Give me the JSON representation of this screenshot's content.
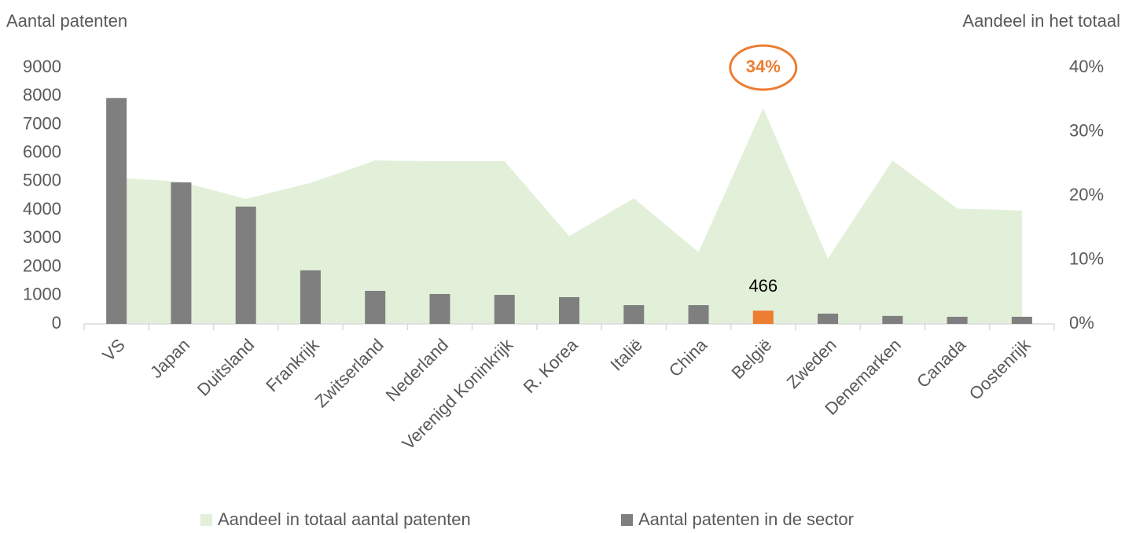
{
  "chart_data": {
    "type": "bar-area",
    "y_label": "Aantal patenten",
    "y2_label": "Aandeel in het totaal",
    "categories": [
      "VS",
      "Japan",
      "Duitsland",
      "Frankrijk",
      "Zwitserland",
      "Nederland",
      "Verenigd Koninkrijk",
      "R. Korea",
      "Italië",
      "China",
      "België",
      "Zweden",
      "Denemarken",
      "Canada",
      "Oostenrijk"
    ],
    "series": [
      {
        "name": "Aandeel in totaal aantal patenten",
        "type": "area",
        "axis": "y2",
        "color": "#e2f0d9",
        "values": [
          22.8,
          22.2,
          19.5,
          22.0,
          25.5,
          25.4,
          25.4,
          13.7,
          19.6,
          11.2,
          33.7,
          10.2,
          25.5,
          18.0,
          17.7
        ],
        "value_labels": [
          null,
          null,
          null,
          null,
          null,
          null,
          null,
          null,
          null,
          null,
          "34%",
          null,
          null,
          null,
          null
        ],
        "label_color": "#ed7d31"
      },
      {
        "name": "Aantal patenten in de sector",
        "type": "bar",
        "axis": "y",
        "color": "#7f7f7f",
        "colors": [
          "#7f7f7f",
          "#7f7f7f",
          "#7f7f7f",
          "#7f7f7f",
          "#7f7f7f",
          "#7f7f7f",
          "#7f7f7f",
          "#7f7f7f",
          "#7f7f7f",
          "#7f7f7f",
          "#ed7d31",
          "#7f7f7f",
          "#7f7f7f",
          "#7f7f7f",
          "#7f7f7f"
        ],
        "values": [
          7930,
          4970,
          4120,
          1880,
          1160,
          1050,
          1020,
          940,
          660,
          660,
          466,
          360,
          280,
          250,
          250
        ],
        "labeled_index": 10
      }
    ],
    "ylim": [
      0,
      9000
    ],
    "yticks": [
      0,
      1000,
      2000,
      3000,
      4000,
      5000,
      6000,
      7000,
      8000,
      9000
    ],
    "y2lim": [
      0,
      40
    ],
    "y2ticks": [
      {
        "value": 0,
        "label": "0%"
      },
      {
        "value": 10,
        "label": "10%"
      },
      {
        "value": 20,
        "label": "20%"
      },
      {
        "value": 30,
        "label": "30%"
      },
      {
        "value": 40,
        "label": "40%"
      }
    ],
    "legend": "bottom"
  }
}
